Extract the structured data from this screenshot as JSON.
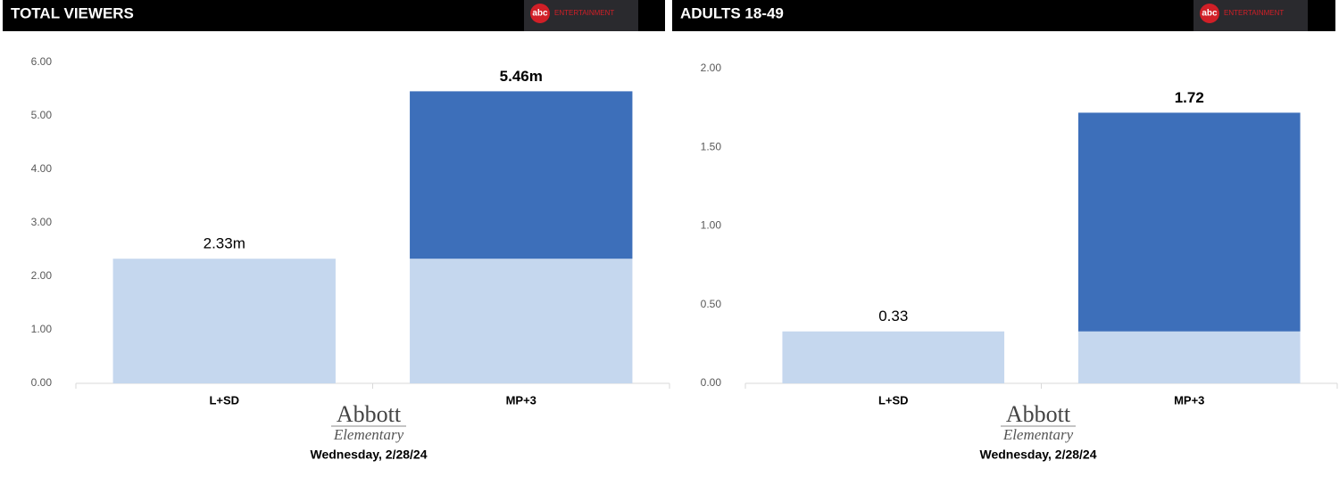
{
  "chart_data": [
    {
      "type": "bar",
      "stacked": true,
      "title": "TOTAL VIEWERS",
      "network": "abc",
      "network_sub": "ENTERTAINMENT",
      "categories": [
        "L+SD",
        "MP+3"
      ],
      "series": [
        {
          "color": "#c5d7ee",
          "values": [
            2.33,
            2.33
          ]
        },
        {
          "color": "#3d6fba",
          "values": [
            null,
            3.13
          ]
        }
      ],
      "totals": [
        2.33,
        5.46
      ],
      "total_labels": [
        "2.33m",
        "5.46m"
      ],
      "ylim": [
        0,
        6
      ],
      "yticks": [
        {
          "value": 0,
          "label": "0.00"
        },
        {
          "value": 1,
          "label": "1.00"
        },
        {
          "value": 2,
          "label": "2.00"
        },
        {
          "value": 3,
          "label": "3.00"
        },
        {
          "value": 4,
          "label": "4.00"
        },
        {
          "value": 5,
          "label": "5.00"
        },
        {
          "value": 6,
          "label": "6.00"
        }
      ],
      "show": [
        "Abbott",
        "Elementary"
      ],
      "date": "Wednesday, 2/28/24"
    },
    {
      "type": "bar",
      "stacked": true,
      "title": "ADULTS 18-49",
      "network": "abc",
      "network_sub": "ENTERTAINMENT",
      "categories": [
        "L+SD",
        "MP+3"
      ],
      "series": [
        {
          "color": "#c5d7ee",
          "values": [
            0.33,
            0.33
          ]
        },
        {
          "color": "#3d6fba",
          "values": [
            null,
            1.39
          ]
        }
      ],
      "totals": [
        0.33,
        1.72
      ],
      "ylim": [
        0,
        2
      ],
      "yticks": [
        {
          "value": 0,
          "label": "0.00"
        },
        {
          "value": 0.5,
          "label": "0.50"
        },
        {
          "value": 1,
          "label": "1.00"
        },
        {
          "value": 1.5,
          "label": "1.50"
        },
        {
          "value": 2,
          "label": "2.00"
        }
      ],
      "show": [
        "Abbott",
        "Elementary"
      ],
      "date": "Wednesday, 2/28/24"
    }
  ]
}
